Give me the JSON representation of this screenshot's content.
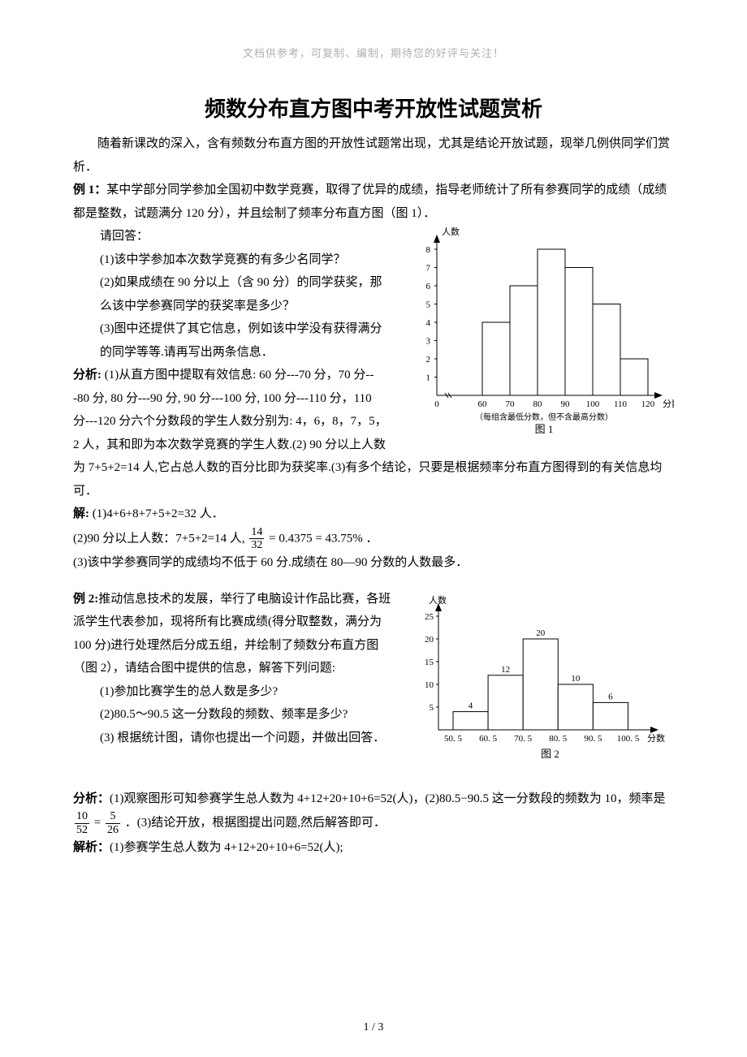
{
  "header_note": "文档供参考，可复制、编制，期待您的好评与关注！",
  "title": "频数分布直方图中考开放性试题赏析",
  "intro": "随着新课改的深入，含有频数分布直方图的开放性试题常出现，尤其是结论开放试题，现举几例供同学们赏析．",
  "ex1": {
    "label": "例 1：",
    "stem": "某中学部分同学参加全国初中数学竞赛，取得了优异的成绩，指导老师统计了所有参赛同学的成绩（成绩都是整数，试题满分 120 分），并且绘制了频率分布直方图（图 1）．",
    "ask": "请回答：",
    "q1": "(1)该中学参加本次数学竞赛的有多少名同学？",
    "q2": "(2)如果成绩在 90 分以上（含 90 分）的同学获奖，那么该中学参赛同学的获奖率是多少？",
    "q3": "(3)图中还提供了其它信息，例如该中学没有获得满分的同学等等.请再写出两条信息．",
    "analysis_label": "分析:",
    "analysis": " (1)从直方图中提取有效信息: 60 分---70 分，70 分---80 分, 80 分---90 分, 90 分---100 分, 100 分---110 分，110 分---120 分六个分数段的学生人数分别为: 4，6，8，7，5，2 人，其和即为本次数学竞赛的学生人数.(2) 90 分以上人数为 7+5+2=14 人,它占总人数的百分比即为获奖率.(3)有多个结论，只要是根据频率分布直方图得到的有关信息均可．",
    "solve_label": "解:",
    "solve1": "  (1)4+6+8+7+5+2=32 人．",
    "solve2_prefix": "(2)90 分以上人数：7+5+2=14 人, ",
    "frac_num": "14",
    "frac_den": "32",
    "solve2_suffix": " = 0.4375 = 43.75% ．",
    "solve3": "(3)该中学参赛同学的成绩均不低于 60 分.成绩在 80—90 分数的人数最多．"
  },
  "chart1": {
    "type": "bar",
    "ylabel": "人数",
    "xlabel": "分数",
    "x_ticks": [
      "0",
      "60",
      "70",
      "80",
      "90",
      "100",
      "110",
      "120"
    ],
    "y_ticks": [
      1,
      2,
      3,
      4,
      5,
      6,
      7,
      8
    ],
    "values": [
      4,
      6,
      8,
      7,
      5,
      2
    ],
    "note": "（每组含最低分数，但不含最高分数）",
    "caption": "图 1",
    "axis_color": "#000000",
    "bar_fill": "#ffffff",
    "bar_stroke": "#000000",
    "font_size": 11
  },
  "ex2": {
    "label": "例 2:",
    "stem": "推动信息技术的发展，举行了电脑设计作品比赛，各班派学生代表参加，现将所有比赛成绩(得分取整数，满分为 100 分)进行处理然后分成五组，并绘制了频数分布直方图（图 2），请结合图中提供的信息，解答下列问题:",
    "q1": "(1)参加比赛学生的总人数是多少?",
    "q2": "(2)80.5～90.5 这一分数段的频数、频率是多少?",
    "q3": "(3) 根据统计图，请你也提出一个问题，并做出回答．",
    "analysis_label": "分析：",
    "analysis_a": "(1)观察图形可知参赛学生总人数为 4+12+20+10+6=52(人)，(2)80.5−90.5 这一分数段的频数为 10，频率是",
    "frac1_num": "10",
    "frac1_den": "52",
    "eq_text": " = ",
    "frac2_num": "5",
    "frac2_den": "26",
    "analysis_b": "．(3)结论开放，根据图提出问题,然后解答即可．",
    "solve_label": "解析：",
    "solve": "(1)参赛学生总人数为 4+12+20+10+6=52(人);"
  },
  "chart2": {
    "type": "bar",
    "ylabel": "人数",
    "xlabel": "分数",
    "x_ticks": [
      "50. 5",
      "60. 5",
      "70. 5",
      "80. 5",
      "90. 5",
      "100. 5"
    ],
    "y_ticks": [
      5,
      10,
      15,
      20,
      25
    ],
    "values": [
      4,
      12,
      20,
      10,
      6
    ],
    "value_labels": [
      "4",
      "12",
      "20",
      "10",
      "6"
    ],
    "caption": "图 2",
    "axis_color": "#000000",
    "bar_fill": "#ffffff",
    "bar_stroke": "#000000",
    "font_size": 11
  },
  "footer": "1 / 3"
}
